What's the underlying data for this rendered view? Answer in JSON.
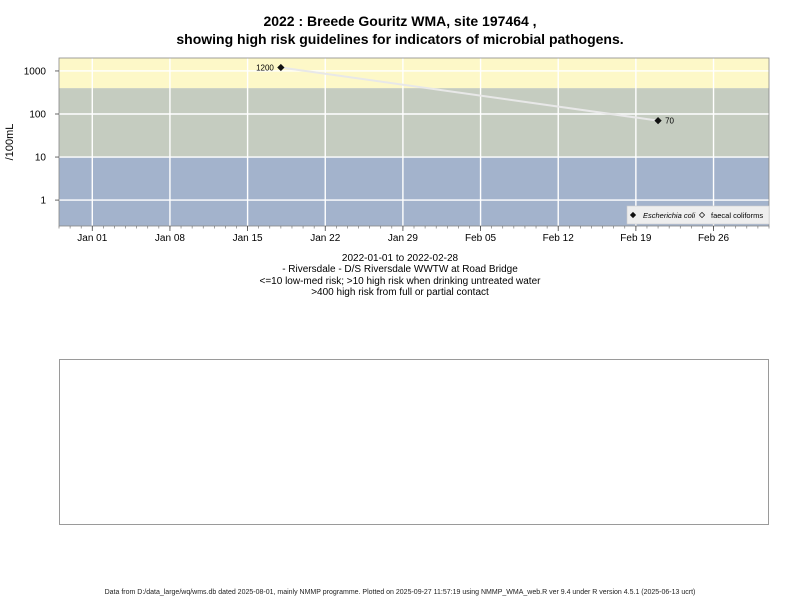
{
  "title_line1": "2022 : Breede Gouritz WMA, site 197464 ,",
  "title_line2": "showing high risk guidelines for indicators of microbial pathogens.",
  "caption": {
    "line1": "2022-01-01 to 2022-02-28",
    "line2": "- Riversdale - D/S Riversdale WWTW at Road Bridge",
    "line3": "<=10 low-med risk; >10 high risk when drinking untreated water",
    "line4": ">400 high risk from full or partial contact"
  },
  "footer": "Data from D:/data_large/wq/wms.db dated 2025-08-01, mainly NMMP programme. Plotted on 2025-09-27 11:57:19 using NMMP_WMA_web.R ver 9.4 under R version 4.5.1 (2025-06-13 ucrt)",
  "chart_data": {
    "type": "line",
    "ylabel": "/100mL",
    "yscale": "log",
    "ylim": [
      0.25,
      2000
    ],
    "yticks": [
      1,
      10,
      100,
      1000
    ],
    "ytick_labels": [
      "1",
      "10",
      "100",
      "1000"
    ],
    "xlim": [
      "2021-12-29",
      "2022-03-03"
    ],
    "xticks": [
      "2022-01-01",
      "2022-01-08",
      "2022-01-15",
      "2022-01-22",
      "2022-01-29",
      "2022-02-05",
      "2022-02-12",
      "2022-02-19",
      "2022-02-26"
    ],
    "xtick_labels": [
      "Jan 01",
      "Jan 08",
      "Jan 15",
      "Jan 22",
      "Jan 29",
      "Feb 05",
      "Feb 12",
      "Feb 19",
      "Feb 26"
    ],
    "risk_bands": [
      {
        "from": 0.25,
        "to": 10,
        "color": "#a3b3cc"
      },
      {
        "from": 10,
        "to": 400,
        "color": "#c5ccc0"
      },
      {
        "from": 400,
        "to": 2000,
        "color": "#fdf8c8"
      }
    ],
    "grid": true,
    "legend_position": "bottom-right",
    "series": [
      {
        "name": "Escherichia coli",
        "marker": "filled-diamond",
        "x": [
          "2022-01-18",
          "2022-02-21"
        ],
        "y": [
          1200,
          70
        ],
        "labels": [
          "1200",
          "70"
        ]
      }
    ],
    "legend": [
      {
        "label": "Escherichia coli",
        "marker": "filled-diamond",
        "italic": true
      },
      {
        "label": "faecal coliforms",
        "marker": "open-diamond",
        "italic": false
      }
    ]
  }
}
